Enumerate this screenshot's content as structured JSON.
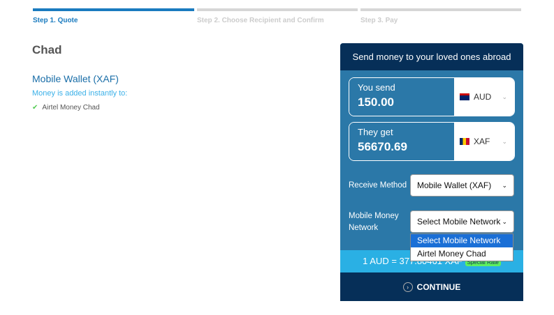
{
  "steps": [
    {
      "label": "Step 1. Quote",
      "active": true
    },
    {
      "label": "Step 2. Choose Recipient and Confirm",
      "active": false
    },
    {
      "label": "Step 3. Pay",
      "active": false
    }
  ],
  "country": "Chad",
  "method_title": "Mobile Wallet (XAF)",
  "added_text": "Money is added instantly to:",
  "providers": [
    "Airtel Money Chad"
  ],
  "card": {
    "title": "Send money to your loved ones abroad",
    "send_label": "You send",
    "send_value": "150.00",
    "send_currency": "AUD",
    "get_label": "They get",
    "get_value": "56670.69",
    "get_currency": "XAF",
    "receive_label": "Receive Method",
    "receive_value": "Mobile Wallet (XAF)",
    "network_label": "Mobile Money Network",
    "network_value": "Select Mobile Network",
    "network_options": [
      "Select Mobile Network",
      "Airtel Money Chad"
    ],
    "rate": "1 AUD = 377.80461 XAF",
    "rate_badge": "Special Rate",
    "continue": "CONTINUE"
  },
  "colors": {
    "accent": "#1a7bbf",
    "dark": "#062f58",
    "card": "#2b78a8",
    "rate": "#2ab0e4"
  }
}
